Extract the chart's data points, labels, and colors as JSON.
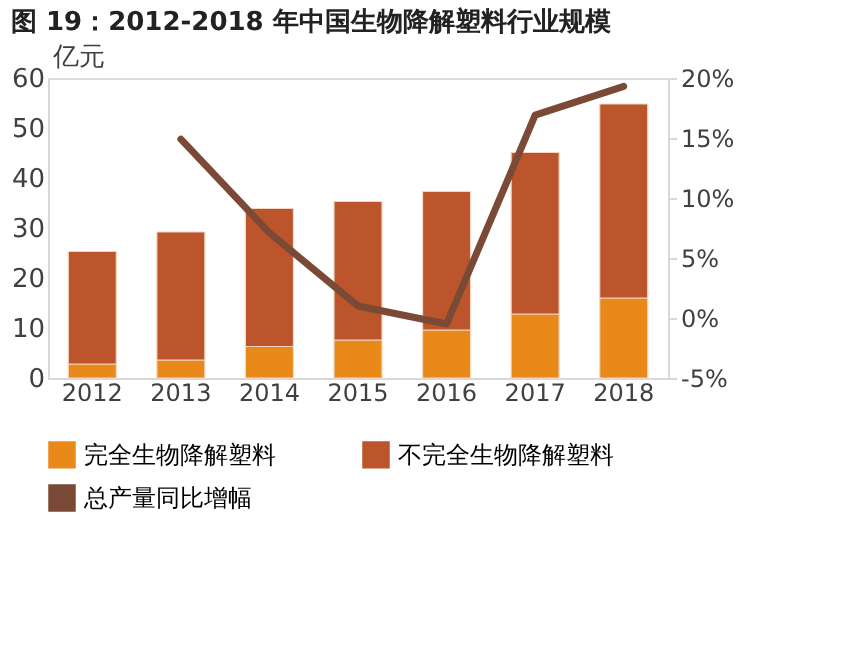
{
  "chart_data": {
    "type": "bar",
    "title": "图 19：2012-2018 年中国生物降解塑料行业规模",
    "ylabel": "亿元",
    "categories": [
      "2012",
      "2013",
      "2014",
      "2015",
      "2016",
      "2017",
      "2018"
    ],
    "stacked": true,
    "ylim": [
      0,
      60
    ],
    "yticks": [
      0,
      10,
      20,
      30,
      40,
      50,
      60
    ],
    "y2lim": [
      -5,
      20
    ],
    "y2ticks": [
      {
        "value": -5,
        "label": "-5%"
      },
      {
        "value": 0,
        "label": "0%"
      },
      {
        "value": 5,
        "label": "5%"
      },
      {
        "value": 10,
        "label": "10%"
      },
      {
        "value": 15,
        "label": "15%"
      },
      {
        "value": 20,
        "label": "20%"
      }
    ],
    "grid": false,
    "legend": "bottom",
    "series": [
      {
        "name": "完全生物降解塑料",
        "color": "#e8891a",
        "values": [
          2.8,
          3.6,
          6.3,
          7.6,
          9.6,
          12.8,
          16.0
        ]
      },
      {
        "name": "不完全生物降解塑料",
        "color": "#bc552b",
        "values": [
          22.5,
          25.6,
          27.6,
          27.7,
          27.7,
          32.3,
          38.8
        ]
      },
      {
        "name": "总产量同比增幅",
        "type": "line",
        "axis": "y2",
        "color": "#7b4a36",
        "values": [
          null,
          14.9,
          7.1,
          1.0,
          -0.5,
          16.9,
          19.3
        ]
      }
    ]
  }
}
